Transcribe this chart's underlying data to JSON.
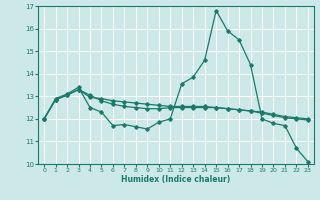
{
  "xlabel": "Humidex (Indice chaleur)",
  "xlim": [
    -0.5,
    23.5
  ],
  "ylim": [
    10,
    17
  ],
  "yticks": [
    10,
    11,
    12,
    13,
    14,
    15,
    16,
    17
  ],
  "xticks": [
    0,
    1,
    2,
    3,
    4,
    5,
    6,
    7,
    8,
    9,
    10,
    11,
    12,
    13,
    14,
    15,
    16,
    17,
    18,
    19,
    20,
    21,
    22,
    23
  ],
  "bg_color": "#cce8e8",
  "line_color": "#1a7a6a",
  "grid_color": "#ffffff",
  "line1_x": [
    0,
    1,
    2,
    3,
    4,
    5,
    6,
    7,
    8,
    9,
    10,
    11,
    12,
    13,
    14,
    15,
    16,
    17,
    18,
    19,
    20,
    21,
    22,
    23
  ],
  "line1_y": [
    12.0,
    12.9,
    13.1,
    13.4,
    12.5,
    12.3,
    11.7,
    11.75,
    11.65,
    11.55,
    11.85,
    12.0,
    13.55,
    13.85,
    14.6,
    16.8,
    15.9,
    15.5,
    14.4,
    12.0,
    11.8,
    11.7,
    10.7,
    10.1
  ],
  "line2_x": [
    0,
    1,
    2,
    3,
    4,
    5,
    6,
    7,
    8,
    9,
    10,
    11,
    12,
    13,
    14,
    15,
    16,
    17,
    18,
    19,
    20,
    21,
    22,
    23
  ],
  "line2_y": [
    12.0,
    12.85,
    13.05,
    13.3,
    12.95,
    12.9,
    12.8,
    12.75,
    12.7,
    12.65,
    12.6,
    12.55,
    12.55,
    12.55,
    12.55,
    12.5,
    12.45,
    12.4,
    12.35,
    12.3,
    12.2,
    12.1,
    12.05,
    12.0
  ],
  "line3_x": [
    0,
    1,
    2,
    3,
    4,
    5,
    6,
    7,
    8,
    9,
    10,
    11,
    12,
    13,
    14,
    15,
    16,
    17,
    18,
    19,
    20,
    21,
    22,
    23
  ],
  "line3_y": [
    12.0,
    12.85,
    13.05,
    13.3,
    13.05,
    12.8,
    12.65,
    12.55,
    12.5,
    12.45,
    12.45,
    12.5,
    12.5,
    12.5,
    12.5,
    12.5,
    12.45,
    12.4,
    12.35,
    12.25,
    12.15,
    12.05,
    12.0,
    11.95
  ]
}
